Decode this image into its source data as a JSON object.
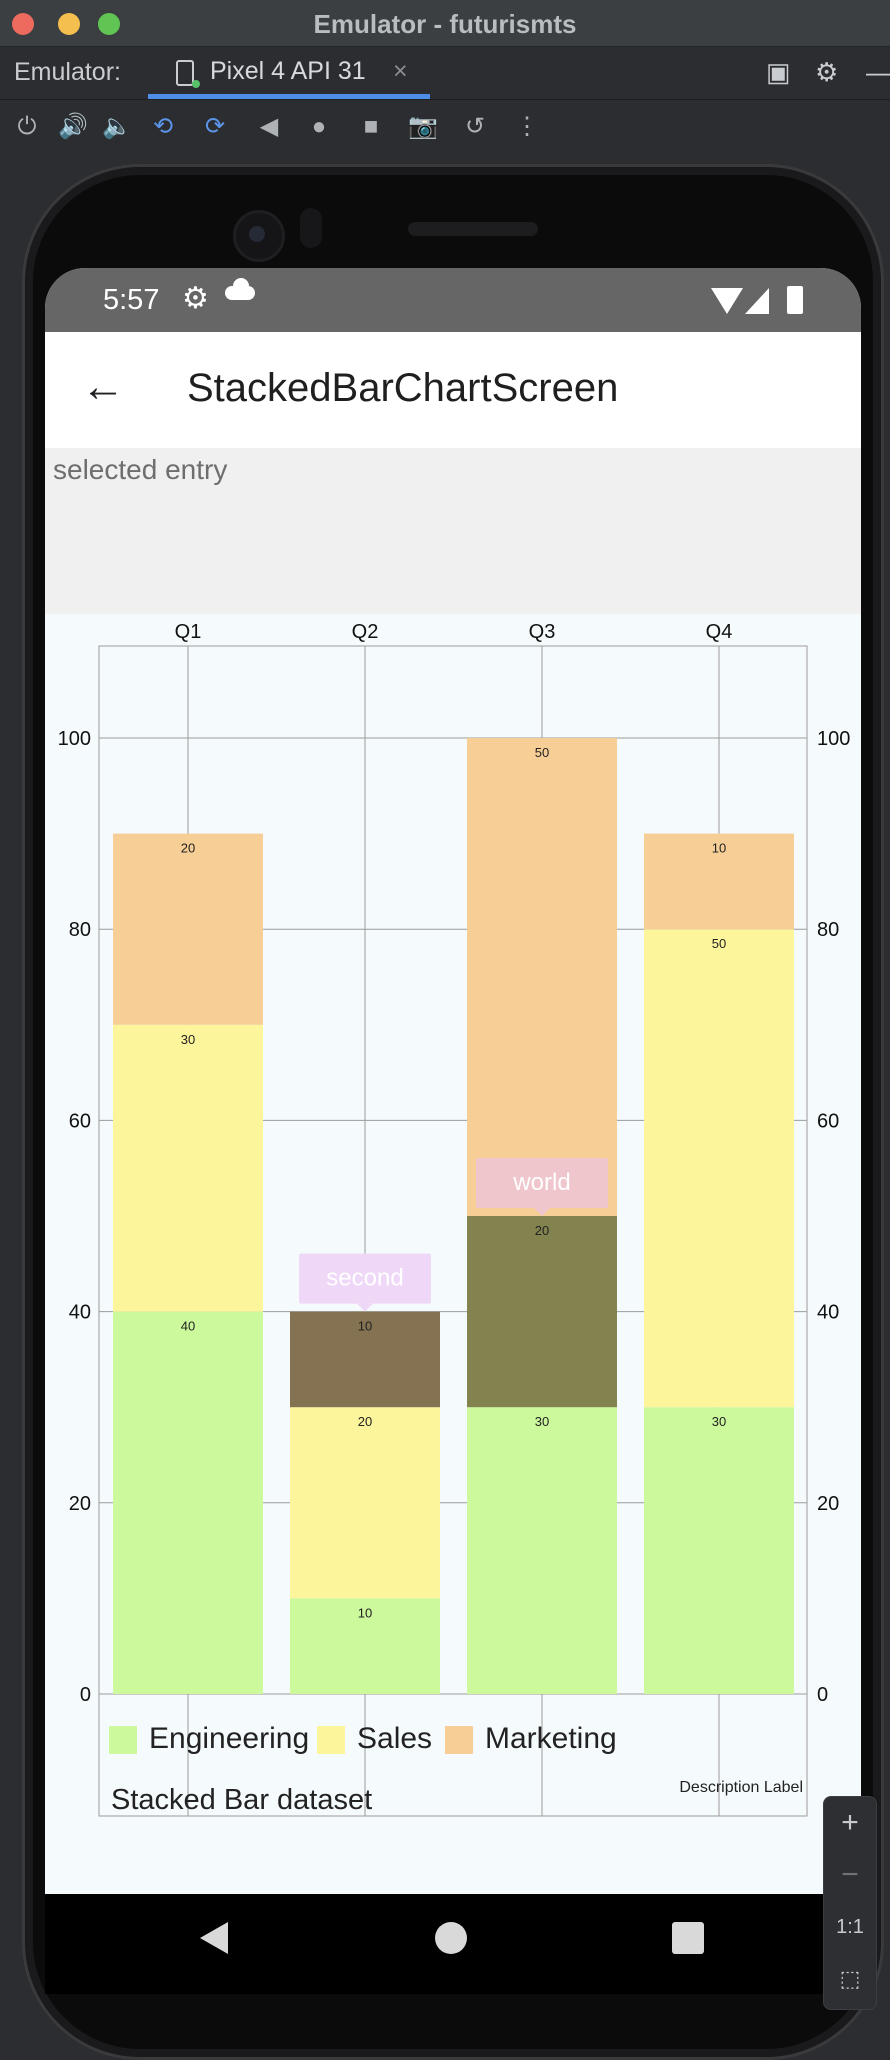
{
  "window": {
    "title": "Emulator - futurismts"
  },
  "tabbar": {
    "prefix": "Emulator:",
    "device_tab": "Pixel 4 API 31",
    "close": "×"
  },
  "toolbar": {
    "icons": [
      "power-icon",
      "volume-up-icon",
      "volume-down-icon",
      "rotate-left-icon",
      "rotate-right-icon",
      "back-icon",
      "home-icon",
      "overview-icon",
      "screenshot-icon",
      "snapshot-icon",
      "more-icon"
    ]
  },
  "status": {
    "time": "5:57"
  },
  "app": {
    "title": "StackedBarChartScreen",
    "back_label": "←"
  },
  "selected": {
    "label": "selected entry"
  },
  "chart": {
    "description": "Description Label",
    "dataset_label": "Stacked Bar dataset",
    "markers": {
      "q2": "second",
      "q3": "world"
    },
    "tick_labels": [
      "0",
      "20",
      "40",
      "60",
      "80",
      "100"
    ]
  },
  "chart_data": {
    "type": "bar",
    "stacked": true,
    "categories": [
      "Q1",
      "Q2",
      "Q3",
      "Q4"
    ],
    "series": [
      {
        "name": "Engineering",
        "values": [
          40,
          10,
          30,
          30
        ],
        "color": "#ccf99c"
      },
      {
        "name": "Sales",
        "values": [
          30,
          20,
          20,
          50
        ],
        "color": "#fdf59b"
      },
      {
        "name": "Marketing",
        "values": [
          20,
          10,
          50,
          10
        ],
        "color": "#f7cf96"
      }
    ],
    "highlight": [
      {
        "category": "Q2",
        "series": "Marketing",
        "color": "#847253"
      },
      {
        "category": "Q3",
        "series": "Sales",
        "color": "#83834f"
      }
    ],
    "ylim": [
      0,
      100
    ],
    "yticks": [
      0,
      20,
      40,
      60,
      80,
      100
    ],
    "grid": true,
    "legend": "bottom-left"
  },
  "zoom": {
    "plus": "+",
    "minus": "−",
    "one": "1:1"
  }
}
